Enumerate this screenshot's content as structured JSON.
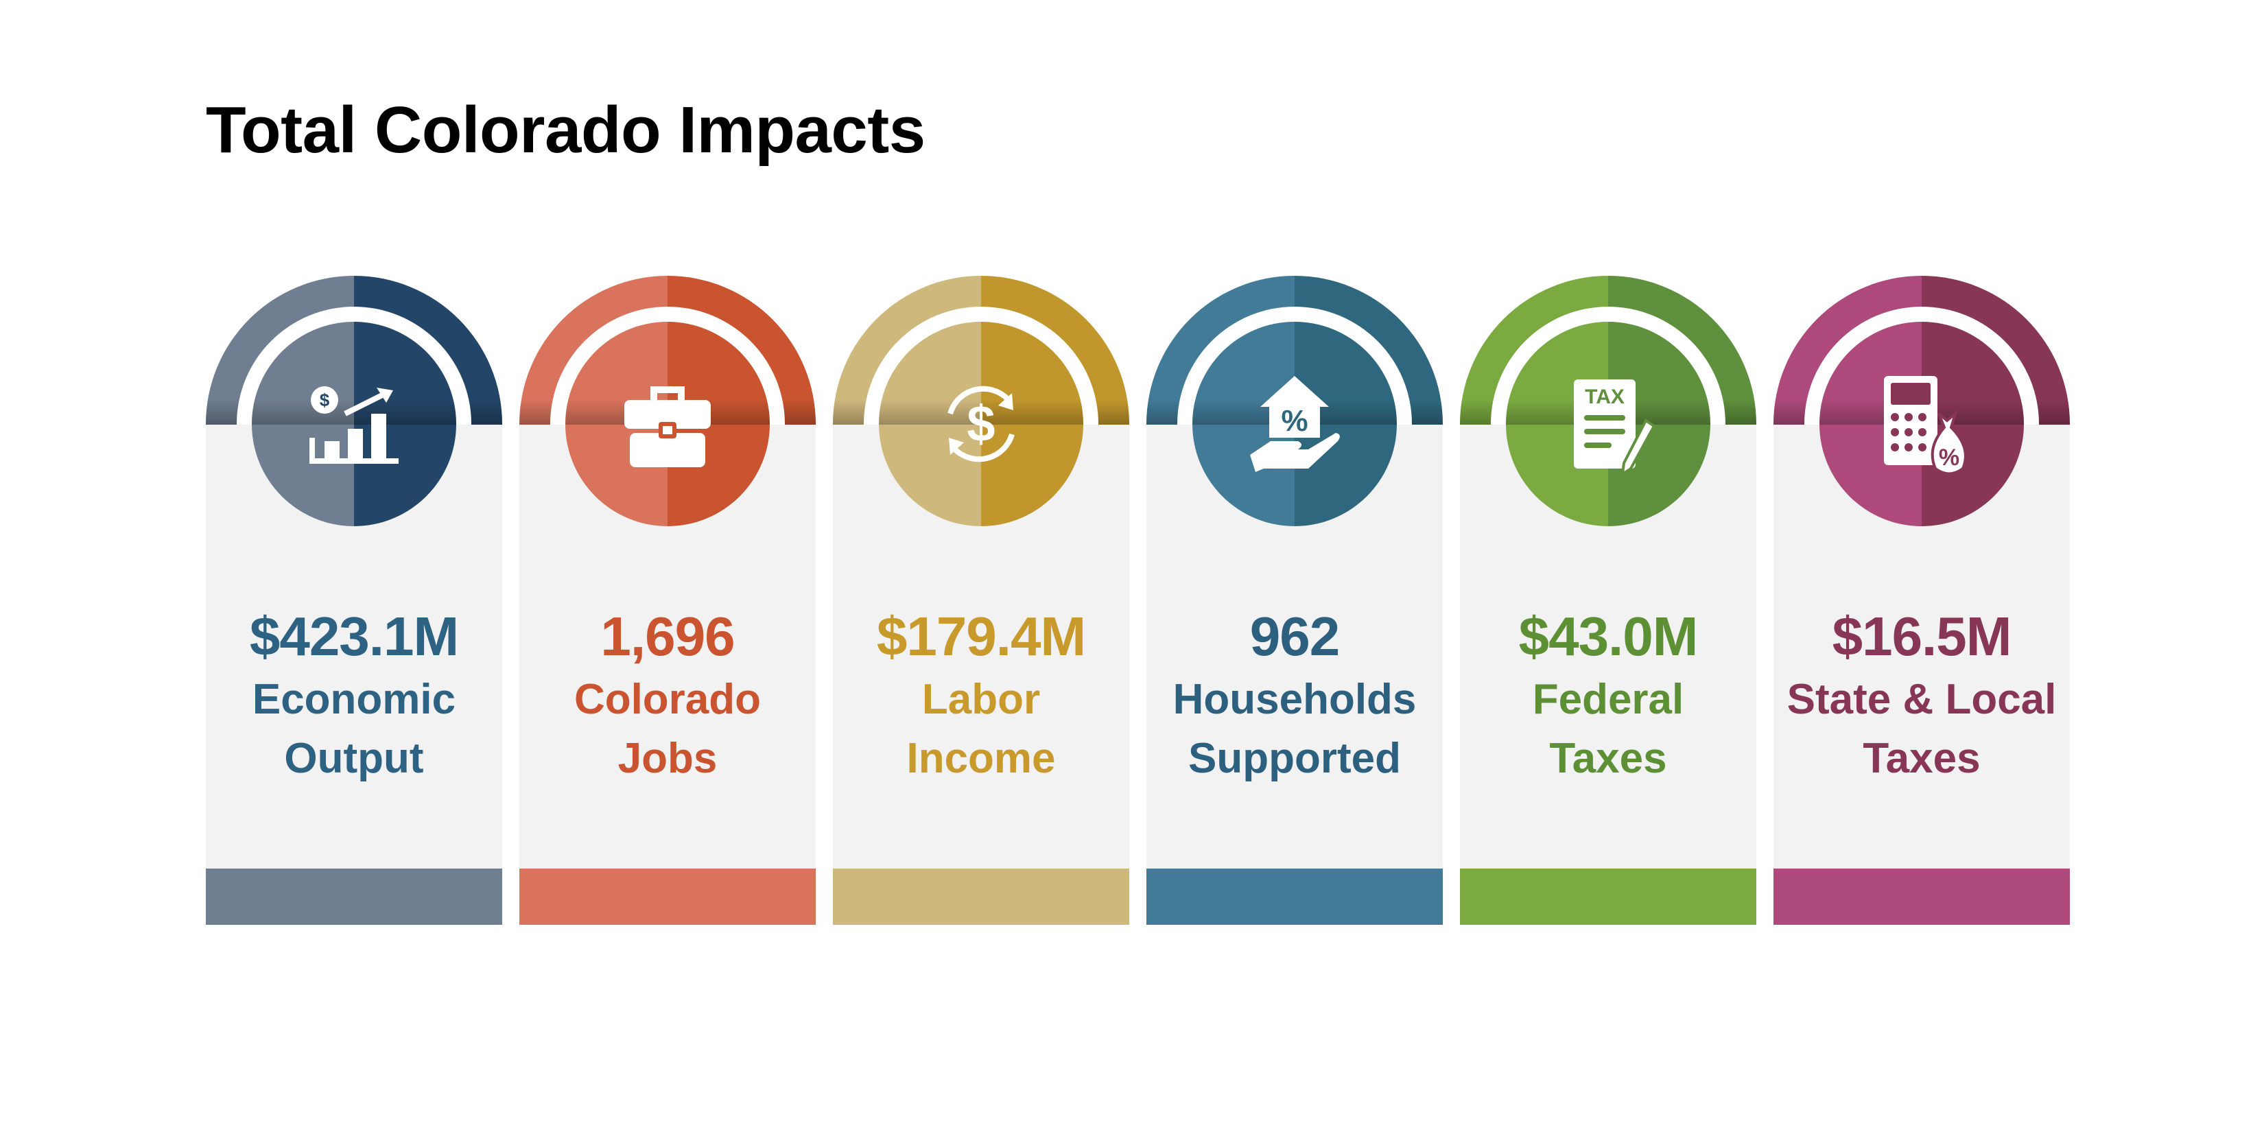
{
  "title": "Total Colorado Impacts",
  "cards": [
    {
      "value": "$423.1M",
      "label1": "Economic",
      "label2": "Output",
      "icon": "chart-growth-dollar-icon",
      "light": "#6f7e90",
      "dark": "#234567",
      "text": "#2e6283"
    },
    {
      "value": "1,696",
      "label1": "Colorado",
      "label2": "Jobs",
      "icon": "briefcase-icon",
      "light": "#d9735c",
      "dark": "#c9542f",
      "text": "#c9542f"
    },
    {
      "value": "$179.4M",
      "label1": "Labor",
      "label2": "Income",
      "icon": "dollar-cycle-icon",
      "light": "#cfb87c",
      "dark": "#c1962c",
      "text": "#c79a2b"
    },
    {
      "value": "962",
      "label1": "Households",
      "label2": "Supported",
      "icon": "house-in-hand-icon",
      "light": "#417b98",
      "dark": "#2f687e",
      "text": "#2d5f7f"
    },
    {
      "value": "$43.0M",
      "label1": "Federal",
      "label2": "Taxes",
      "icon": "tax-document-icon",
      "light": "#7aaa40",
      "dark": "#5f903d",
      "text": "#5d9035",
      "icon_text": "TAX"
    },
    {
      "value": "$16.5M",
      "label1": "State & Local",
      "label2": "Taxes",
      "icon": "calculator-moneybag-icon",
      "light": "#ad4a7b",
      "dark": "#883656",
      "text": "#883656"
    }
  ]
}
